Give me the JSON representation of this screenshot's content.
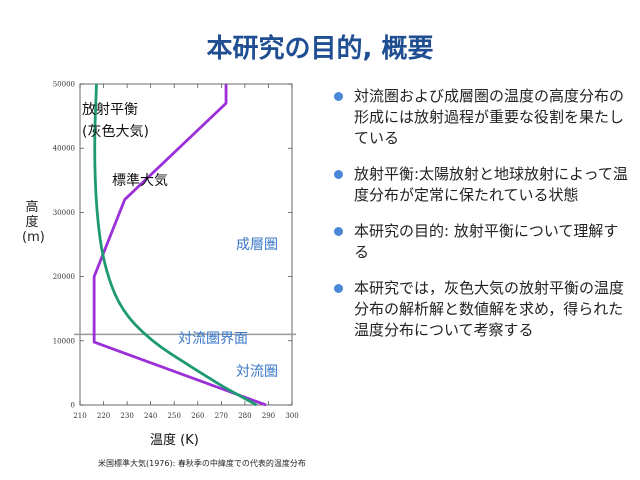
{
  "title": "本研究の目的, 概要",
  "bullets": [
    "対流圏および成層圏の温度の高度分布の形成には放射過程が重要な役割を果たしている",
    "放射平衡:太陽放射と地球放射によって温度分布が定常に保たれている状態",
    "本研究の目的:  放射平衡について理解する",
    "本研究では，灰色大気の放射平衡の温度分布の解析解と数値解を求め，得られた温度分布について考察する"
  ],
  "footnote": "米国標準大気(1976): 春秋季の中緯度での代表的温度分布",
  "colors": {
    "title": "#1f4e92",
    "bullet": "#4a86d8",
    "radiative": "#9b30d9",
    "standard": "#1e9a72",
    "annotation": "#3a78c8",
    "tropopause": "#999999"
  },
  "chart_data": {
    "type": "line",
    "xlabel": "温度 (K)",
    "ylabel": "高度 (m)",
    "xlim": [
      210,
      300
    ],
    "ylim": [
      0,
      50000
    ],
    "xticks": [
      210,
      220,
      230,
      240,
      250,
      260,
      270,
      280,
      290,
      300
    ],
    "yticks": [
      0,
      10000,
      20000,
      30000,
      40000,
      50000
    ],
    "series": [
      {
        "name": "放射平衡",
        "color": "#9b30d9",
        "x": [
          289,
          216,
          216,
          229,
          272,
          272
        ],
        "y": [
          0,
          9800,
          20000,
          32000,
          47000,
          50000
        ]
      },
      {
        "name": "標準大気",
        "color": "#1e9a72",
        "x": [
          217,
          216,
          217,
          220,
          227,
          240,
          257,
          270,
          279,
          285
        ],
        "y": [
          50000,
          40000,
          30000,
          22000,
          15000,
          10000,
          6000,
          3000,
          1200,
          0
        ]
      }
    ],
    "tropopause": {
      "y": 11000,
      "label": "対流圏界面"
    },
    "annotations": [
      "成層圏",
      "対流圏"
    ]
  }
}
